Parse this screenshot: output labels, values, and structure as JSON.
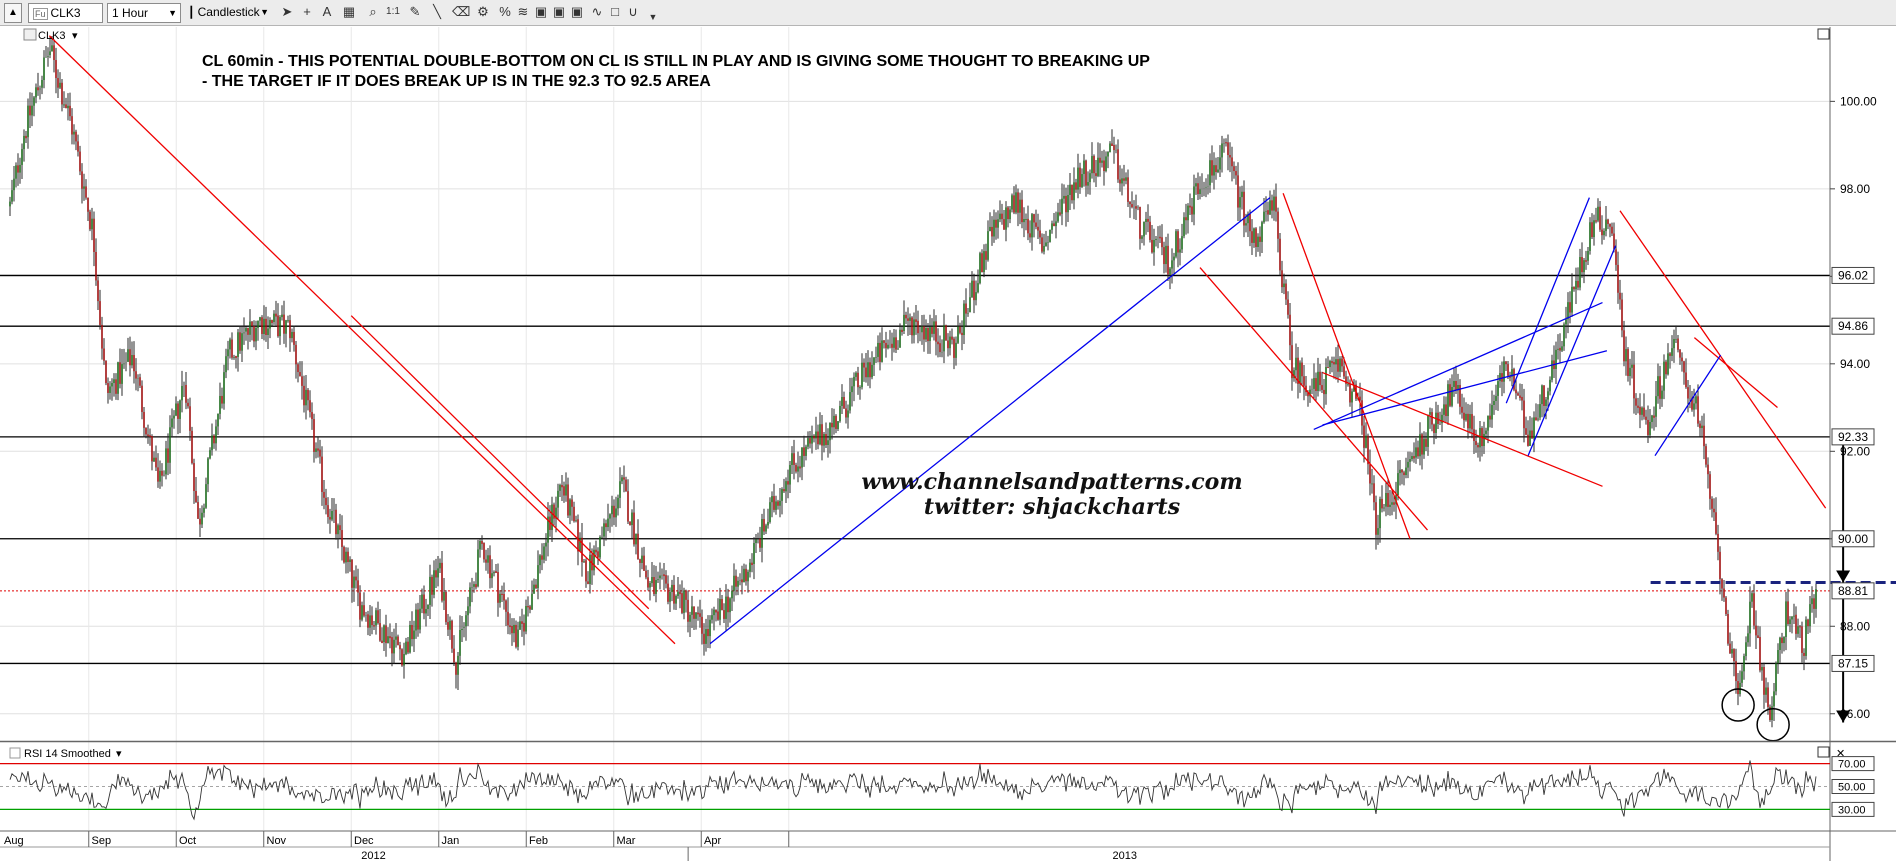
{
  "toolbar": {
    "symbol": "CLK3",
    "interval": "1 Hour",
    "chart_style": "Candlestick"
  },
  "chart_data": {
    "type": "candlestick",
    "symbol_label": "CLK3",
    "title_lines": [
      "CL 60min - THIS POTENTIAL DOUBLE-BOTTOM ON CL IS STILL IN PLAY AND IS GIVING SOME THOUGHT TO BREAKING UP",
      "- THE TARGET IF IT DOES BREAK UP IS IN THE 92.3 TO 92.5 AREA"
    ],
    "watermark": [
      "www.channelsandpatterns.com",
      "twitter: shjackcharts"
    ],
    "y_ticks": [
      86.0,
      88.0,
      90.0,
      92.0,
      94.0,
      96.0,
      98.0,
      100.0
    ],
    "ylim": [
      85.4,
      101.7
    ],
    "price_labels": [
      {
        "value": 96.02,
        "text": "96.02",
        "color": "#cc0000"
      },
      {
        "value": 94.86,
        "text": "94.86",
        "color": "#cc0000"
      },
      {
        "value": 92.33,
        "text": "92.33",
        "color": "#cc0000"
      },
      {
        "value": 90.0,
        "text": "90.00",
        "color": "#cc0000"
      },
      {
        "value": 88.81,
        "text": "88.81",
        "color": "#000000"
      },
      {
        "value": 87.15,
        "text": "87.15",
        "color": "#cc0000"
      }
    ],
    "horizontal_levels": [
      96.02,
      94.86,
      92.33,
      90.0,
      87.15
    ],
    "current_price": 88.81,
    "months": [
      "Aug",
      "Sep",
      "Oct",
      "Nov",
      "Dec",
      "Jan",
      "Feb",
      "Mar",
      "Apr"
    ],
    "years": [
      "2012",
      "2013"
    ],
    "price_path": [
      [
        0,
        97.6
      ],
      [
        0.15,
        99.2
      ],
      [
        0.45,
        101.2
      ],
      [
        0.7,
        99.5
      ],
      [
        0.95,
        97.0
      ],
      [
        1.1,
        93.3
      ],
      [
        1.4,
        94.2
      ],
      [
        1.7,
        91.1
      ],
      [
        2.0,
        93.7
      ],
      [
        2.15,
        90.3
      ],
      [
        2.5,
        94.2
      ],
      [
        2.85,
        95.0
      ],
      [
        3.2,
        94.8
      ],
      [
        3.6,
        91.0
      ],
      [
        4.0,
        88.5
      ],
      [
        4.5,
        87.4
      ],
      [
        4.9,
        89.3
      ],
      [
        5.1,
        87.2
      ],
      [
        5.4,
        89.9
      ],
      [
        5.8,
        87.6
      ],
      [
        6.3,
        91.3
      ],
      [
        6.6,
        89.2
      ],
      [
        7.0,
        91.2
      ],
      [
        7.3,
        88.9
      ],
      [
        7.6,
        88.8
      ],
      [
        7.95,
        87.8
      ],
      [
        8.4,
        89.2
      ],
      [
        8.9,
        91.6
      ],
      [
        9.4,
        92.6
      ],
      [
        9.8,
        93.9
      ],
      [
        10.3,
        95.0
      ],
      [
        10.8,
        94.4
      ],
      [
        11.2,
        96.9
      ],
      [
        11.5,
        97.7
      ],
      [
        11.8,
        96.7
      ],
      [
        12.2,
        98.3
      ],
      [
        12.6,
        98.8
      ],
      [
        12.9,
        97.2
      ],
      [
        13.25,
        96.3
      ],
      [
        13.6,
        98.2
      ],
      [
        13.9,
        98.8
      ],
      [
        14.2,
        96.8
      ],
      [
        14.45,
        97.6
      ],
      [
        14.65,
        94.0
      ],
      [
        14.9,
        93.4
      ],
      [
        15.2,
        94.0
      ],
      [
        15.45,
        92.8
      ],
      [
        15.6,
        90.4
      ],
      [
        15.85,
        91.2
      ],
      [
        16.2,
        92.5
      ],
      [
        16.5,
        93.4
      ],
      [
        16.8,
        92.2
      ],
      [
        17.1,
        94.0
      ],
      [
        17.35,
        92.4
      ],
      [
        17.6,
        93.7
      ],
      [
        17.85,
        95.5
      ],
      [
        18.1,
        97.3
      ],
      [
        18.3,
        97.2
      ],
      [
        18.45,
        94.3
      ],
      [
        18.7,
        92.5
      ],
      [
        19.0,
        94.5
      ],
      [
        19.3,
        92.8
      ],
      [
        19.6,
        88.5
      ],
      [
        19.75,
        86.1
      ],
      [
        19.9,
        88.8
      ],
      [
        20.1,
        85.8
      ],
      [
        20.3,
        88.4
      ],
      [
        20.5,
        87.6
      ],
      [
        20.65,
        88.8
      ]
    ],
    "trendlines": [
      {
        "color": "red",
        "points": [
          [
            0.45,
            101.5
          ],
          [
            7.6,
            87.6
          ]
        ]
      },
      {
        "color": "red",
        "points": [
          [
            3.9,
            95.1
          ],
          [
            7.3,
            88.4
          ]
        ]
      },
      {
        "color": "blue",
        "points": [
          [
            8.0,
            87.6
          ],
          [
            14.4,
            97.8
          ]
        ]
      },
      {
        "color": "red",
        "points": [
          [
            13.6,
            96.2
          ],
          [
            16.2,
            90.2
          ]
        ]
      },
      {
        "color": "red",
        "points": [
          [
            14.55,
            97.9
          ],
          [
            16.0,
            90.0
          ]
        ]
      },
      {
        "color": "red",
        "points": [
          [
            15.0,
            93.8
          ],
          [
            18.2,
            91.2
          ]
        ]
      },
      {
        "color": "blue",
        "points": [
          [
            14.9,
            92.5
          ],
          [
            18.2,
            95.4
          ]
        ]
      },
      {
        "color": "blue",
        "points": [
          [
            15.0,
            92.6
          ],
          [
            18.25,
            94.3
          ]
        ]
      },
      {
        "color": "blue",
        "points": [
          [
            17.1,
            93.1
          ],
          [
            18.05,
            97.8
          ]
        ]
      },
      {
        "color": "blue",
        "points": [
          [
            17.35,
            91.9
          ],
          [
            18.35,
            96.7
          ]
        ]
      },
      {
        "color": "red",
        "points": [
          [
            18.4,
            97.5
          ],
          [
            20.75,
            90.7
          ]
        ]
      },
      {
        "color": "red",
        "points": [
          [
            19.25,
            94.6
          ],
          [
            20.2,
            93.0
          ]
        ]
      },
      {
        "color": "blue",
        "points": [
          [
            18.8,
            91.9
          ],
          [
            19.55,
            94.2
          ]
        ]
      }
    ],
    "neckline": {
      "value": 89.0,
      "x_range": [
        18.75,
        21.6
      ]
    },
    "target_arrows": [
      {
        "x": 20.95,
        "from": 89.0,
        "to": 92.45
      },
      {
        "x": 20.95,
        "from": 88.9,
        "to": 85.8
      }
    ],
    "bottom_circles": [
      {
        "x": 19.75,
        "price": 86.2
      },
      {
        "x": 20.15,
        "price": 85.75
      }
    ],
    "rsi": {
      "label": "RSI 14 Smoothed",
      "levels": [
        70,
        50,
        30
      ],
      "level_labels": [
        "70.00",
        "50.00",
        "30.00"
      ]
    }
  }
}
